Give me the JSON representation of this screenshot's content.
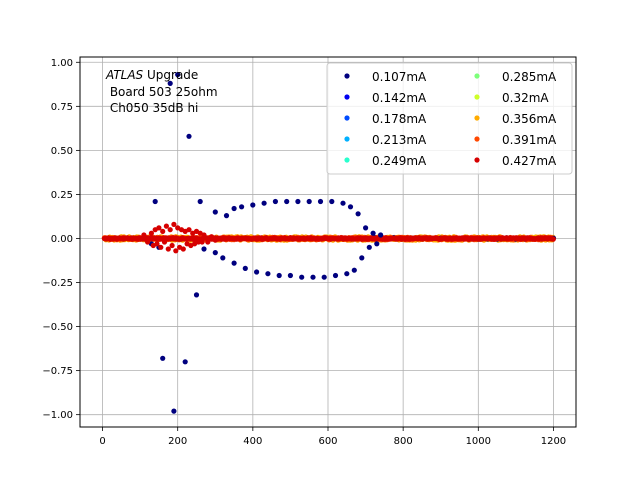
{
  "chart_data": {
    "type": "scatter",
    "annotation": {
      "line1_italic": "ATLAS",
      "line1_rest": " Upgrade",
      "line2": " Board 503 25ohm",
      "line3": " Ch050 35dB hi"
    },
    "xlim": [
      -60,
      1260
    ],
    "ylim": [
      -1.07,
      1.03
    ],
    "xticks": [
      0,
      200,
      400,
      600,
      800,
      1000,
      1200
    ],
    "yticks": [
      -1.0,
      -0.75,
      -0.5,
      -0.25,
      0.0,
      0.25,
      0.5,
      0.75,
      1.0
    ],
    "xtick_labels": [
      "0",
      "200",
      "400",
      "600",
      "800",
      "1000",
      "1200"
    ],
    "ytick_labels": [
      "−1.00",
      "−0.75",
      "−0.50",
      "−0.25",
      "0.00",
      "0.25",
      "0.50",
      "0.75",
      "1.00"
    ],
    "grid": true,
    "legend": {
      "placement": "top-right",
      "columns": 2
    },
    "series": [
      {
        "name": "0.107mA",
        "color": "#00007f",
        "points": [
          [
            140,
            0.21
          ],
          [
            180,
            0.88
          ],
          [
            200,
            0.93
          ],
          [
            230,
            0.58
          ],
          [
            260,
            0.21
          ],
          [
            300,
            0.15
          ],
          [
            330,
            0.13
          ],
          [
            350,
            0.17
          ],
          [
            370,
            0.18
          ],
          [
            400,
            0.19
          ],
          [
            430,
            0.2
          ],
          [
            460,
            0.21
          ],
          [
            490,
            0.21
          ],
          [
            520,
            0.21
          ],
          [
            550,
            0.21
          ],
          [
            580,
            0.21
          ],
          [
            610,
            0.21
          ],
          [
            640,
            0.2
          ],
          [
            660,
            0.18
          ],
          [
            680,
            0.14
          ],
          [
            700,
            0.06
          ],
          [
            720,
            0.03
          ],
          [
            740,
            0.02
          ],
          [
            130,
            -0.03
          ],
          [
            150,
            -0.05
          ],
          [
            160,
            -0.68
          ],
          [
            190,
            -0.98
          ],
          [
            220,
            -0.7
          ],
          [
            250,
            -0.32
          ],
          [
            270,
            -0.06
          ],
          [
            300,
            -0.08
          ],
          [
            320,
            -0.11
          ],
          [
            350,
            -0.14
          ],
          [
            380,
            -0.17
          ],
          [
            410,
            -0.19
          ],
          [
            440,
            -0.2
          ],
          [
            470,
            -0.21
          ],
          [
            500,
            -0.21
          ],
          [
            530,
            -0.22
          ],
          [
            560,
            -0.22
          ],
          [
            590,
            -0.22
          ],
          [
            620,
            -0.21
          ],
          [
            650,
            -0.2
          ],
          [
            670,
            -0.18
          ],
          [
            690,
            -0.11
          ],
          [
            710,
            -0.05
          ],
          [
            730,
            -0.03
          ]
        ]
      },
      {
        "name": "0.142mA",
        "color": "#0000f1",
        "points": []
      },
      {
        "name": "0.178mA",
        "color": "#004cff",
        "points": []
      },
      {
        "name": "0.213mA",
        "color": "#00b0ff",
        "points": []
      },
      {
        "name": "0.249mA",
        "color": "#29ffce",
        "points": []
      },
      {
        "name": "0.285mA",
        "color": "#7dff7a",
        "points": []
      },
      {
        "name": "0.32mA",
        "color": "#ceff29",
        "points": []
      },
      {
        "name": "0.356mA",
        "color": "#ffab00",
        "points": []
      },
      {
        "name": "0.391mA",
        "color": "#ff4800",
        "points": []
      },
      {
        "name": "0.427mA",
        "color": "#d60000",
        "points": [
          [
            110,
            0.02
          ],
          [
            120,
            -0.02
          ],
          [
            130,
            0.03
          ],
          [
            135,
            -0.04
          ],
          [
            140,
            0.05
          ],
          [
            145,
            -0.03
          ],
          [
            150,
            0.06
          ],
          [
            155,
            -0.05
          ],
          [
            160,
            0.04
          ],
          [
            165,
            -0.02
          ],
          [
            170,
            0.07
          ],
          [
            175,
            -0.06
          ],
          [
            180,
            0.05
          ],
          [
            185,
            -0.04
          ],
          [
            190,
            0.08
          ],
          [
            195,
            -0.07
          ],
          [
            200,
            0.06
          ],
          [
            205,
            -0.05
          ],
          [
            210,
            0.05
          ],
          [
            215,
            -0.06
          ],
          [
            220,
            0.04
          ],
          [
            225,
            -0.03
          ],
          [
            230,
            0.05
          ],
          [
            235,
            -0.04
          ],
          [
            240,
            0.03
          ],
          [
            245,
            -0.03
          ],
          [
            250,
            0.04
          ],
          [
            255,
            -0.02
          ],
          [
            260,
            0.03
          ],
          [
            265,
            -0.02
          ],
          [
            270,
            0.02
          ],
          [
            280,
            -0.02
          ],
          [
            290,
            0.01
          ],
          [
            300,
            -0.01
          ]
        ]
      }
    ]
  }
}
